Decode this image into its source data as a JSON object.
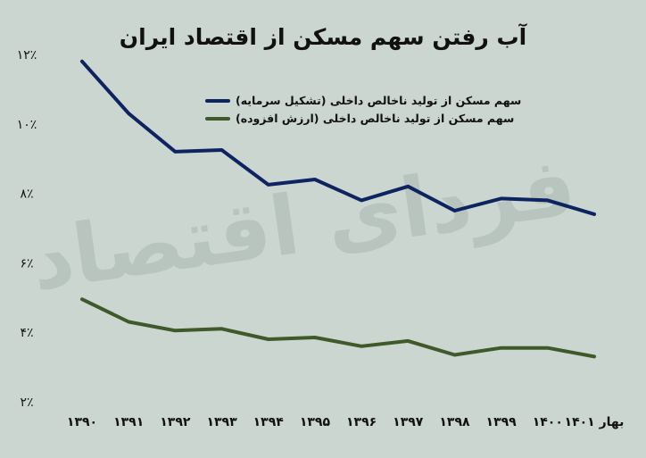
{
  "watermark": "فردای اقتصاد",
  "chart_data": {
    "type": "line",
    "title": "آب رفتن سهم مسکن از اقتصاد ایران",
    "xlabel": "",
    "ylabel": "",
    "categories": [
      "۱۳۹۰",
      "۱۳۹۱",
      "۱۳۹۲",
      "۱۳۹۳",
      "۱۳۹۴",
      "۱۳۹۵",
      "۱۳۹۶",
      "۱۳۹۷",
      "۱۳۹۸",
      "۱۳۹۹",
      "۱۴۰۰",
      "بهار ۱۴۰۱"
    ],
    "ylim": [
      2,
      12
    ],
    "yticks": [
      2,
      4,
      6,
      8,
      10,
      12
    ],
    "ytick_labels": [
      "۲٪",
      "۴٪",
      "۶٪",
      "۸٪",
      "۱۰٪",
      "۱۲٪"
    ],
    "grid": false,
    "legend_position": "top-right",
    "series": [
      {
        "name": "سهم مسکن از تولید ناخالص داخلی (تشکیل سرمایه)",
        "color": "#0e2460",
        "values": [
          11.8,
          10.3,
          9.2,
          9.25,
          8.25,
          8.4,
          7.8,
          8.2,
          7.5,
          7.85,
          7.8,
          7.4
        ]
      },
      {
        "name": "سهم مسکن از تولید ناخالص داخلی (ارزش افزوده)",
        "color": "#3e5a2a",
        "values": [
          4.95,
          4.3,
          4.05,
          4.1,
          3.8,
          3.85,
          3.6,
          3.75,
          3.35,
          3.55,
          3.55,
          3.3
        ]
      }
    ]
  }
}
